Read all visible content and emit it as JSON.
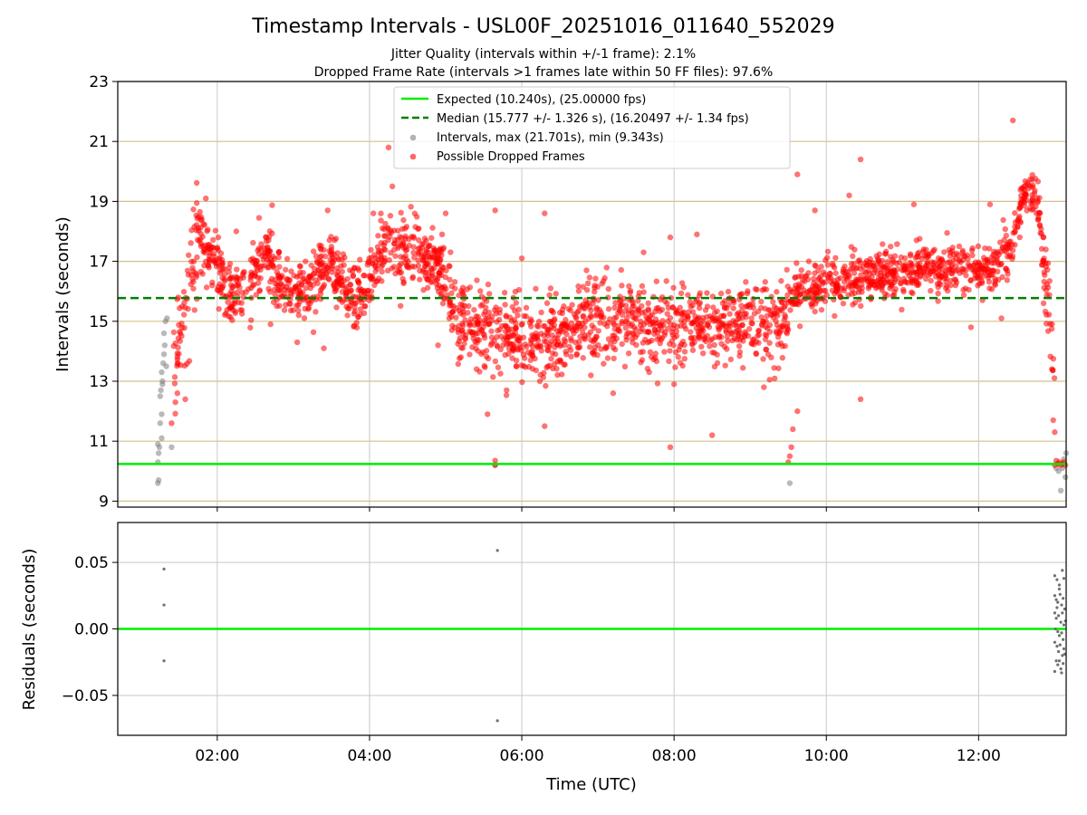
{
  "figure": {
    "title": "Timestamp Intervals - USL00F_20251016_011640_552029",
    "subtitle_jitter": "Jitter Quality (intervals within +/-1 frame): 2.1%",
    "subtitle_dropped": "Dropped Frame Rate (intervals >1 frames late within 50 FF files): 97.6%"
  },
  "colors": {
    "expected": "#00ee00",
    "median": "#008000",
    "dropped": "#ff0000",
    "intervals": "#808080",
    "grid_top": "#d4c08a",
    "grid_bottom": "#c8c8c8"
  },
  "chart_data": [
    {
      "type": "scatter",
      "panel": "intervals",
      "ylabel": "Intervals (seconds)",
      "xlabel": "",
      "x_unit": "hours UTC",
      "xlim": [
        0.693,
        13.15
      ],
      "ylim": [
        8.8,
        23.0
      ],
      "yticks": [
        9,
        11,
        13,
        15,
        17,
        19,
        21,
        23
      ],
      "ytick_labels": [
        "9",
        "11",
        "13",
        "15",
        "17",
        "19",
        "21",
        "23"
      ],
      "grid": "horizontal",
      "legend_position": "top-center",
      "legend": {
        "expected": "Expected (10.240s), (25.00000 fps)",
        "median": "Median (15.777 +/- 1.326 s), (16.20497 +/- 1.34 fps)",
        "intervals": "Intervals, max (21.701s), min (9.343s)",
        "dropped": "Possible Dropped Frames"
      },
      "reference_lines": {
        "expected": 10.24,
        "median": 15.777
      },
      "trend": [
        [
          1.28,
          12.2
        ],
        [
          1.5,
          14.4
        ],
        [
          1.75,
          17.8
        ],
        [
          1.95,
          17.2
        ],
        [
          2.2,
          15.8
        ],
        [
          2.45,
          16.4
        ],
        [
          2.65,
          17.3
        ],
        [
          2.85,
          16.2
        ],
        [
          3.2,
          15.9
        ],
        [
          3.5,
          17.1
        ],
        [
          3.75,
          15.8
        ],
        [
          3.95,
          15.9
        ],
        [
          4.2,
          17.6
        ],
        [
          4.6,
          17.3
        ],
        [
          4.95,
          16.8
        ],
        [
          5.1,
          15.2
        ],
        [
          5.5,
          14.7
        ],
        [
          5.9,
          14.5
        ],
        [
          6.3,
          14.4
        ],
        [
          6.8,
          14.9
        ],
        [
          7.4,
          15.0
        ],
        [
          7.9,
          14.9
        ],
        [
          8.4,
          14.8
        ],
        [
          8.9,
          14.9
        ],
        [
          9.45,
          14.9
        ],
        [
          9.55,
          16.0
        ],
        [
          9.85,
          16.2
        ],
        [
          10.3,
          16.4
        ],
        [
          10.8,
          16.6
        ],
        [
          11.4,
          16.8
        ],
        [
          11.9,
          16.8
        ],
        [
          12.2,
          16.9
        ],
        [
          12.45,
          17.6
        ],
        [
          12.6,
          19.2
        ],
        [
          12.75,
          19.4
        ],
        [
          12.85,
          17.0
        ],
        [
          12.95,
          14.8
        ],
        [
          13.05,
          10.3
        ]
      ],
      "outliers": [
        [
          4.25,
          20.8
        ],
        [
          3.45,
          18.7
        ],
        [
          3.4,
          14.1
        ],
        [
          5.65,
          18.7
        ],
        [
          5.2,
          13.8
        ],
        [
          5.55,
          11.9
        ],
        [
          6.3,
          18.6
        ],
        [
          6.3,
          11.5
        ],
        [
          7.6,
          17.3
        ],
        [
          7.95,
          17.8
        ],
        [
          8.3,
          17.9
        ],
        [
          8.5,
          11.2
        ],
        [
          7.95,
          10.8
        ],
        [
          9.18,
          12.8
        ],
        [
          9.62,
          19.9
        ],
        [
          9.62,
          12.0
        ],
        [
          9.85,
          18.7
        ],
        [
          10.3,
          19.2
        ],
        [
          10.45,
          20.4
        ],
        [
          10.45,
          12.4
        ],
        [
          11.15,
          18.9
        ],
        [
          12.45,
          21.7
        ],
        [
          12.15,
          18.9
        ],
        [
          12.3,
          15.1
        ],
        [
          4.05,
          18.6
        ],
        [
          4.3,
          19.5
        ],
        [
          3.05,
          14.3
        ],
        [
          2.7,
          14.9
        ],
        [
          5.0,
          18.6
        ],
        [
          6.0,
          17.1
        ],
        [
          6.85,
          16.7
        ],
        [
          8.0,
          12.9
        ],
        [
          4.9,
          14.2
        ],
        [
          5.8,
          12.7
        ],
        [
          7.2,
          12.6
        ],
        [
          12.8,
          18.6
        ],
        [
          12.85,
          17.8
        ],
        [
          2.25,
          18.0
        ],
        [
          1.85,
          19.1
        ],
        [
          11.9,
          14.8
        ]
      ],
      "low_cluster": [
        [
          9.5,
          10.3
        ],
        [
          9.52,
          10.5
        ],
        [
          9.54,
          10.8
        ],
        [
          9.56,
          11.4
        ],
        [
          13.0,
          10.2
        ],
        [
          13.02,
          10.35
        ],
        [
          13.04,
          10.25
        ],
        [
          13.06,
          10.3
        ],
        [
          13.08,
          10.2
        ],
        [
          13.1,
          10.25
        ],
        [
          13.12,
          10.3
        ],
        [
          13.14,
          10.2
        ],
        [
          13.0,
          11.3
        ],
        [
          12.98,
          11.7
        ],
        [
          5.65,
          10.2
        ],
        [
          5.65,
          10.35
        ],
        [
          1.45,
          12.3
        ],
        [
          1.4,
          11.6
        ],
        [
          1.58,
          12.4
        ]
      ],
      "gray_points": [
        [
          1.22,
          9.6
        ],
        [
          1.23,
          9.7
        ],
        [
          1.22,
          10.3
        ],
        [
          1.23,
          10.6
        ],
        [
          1.24,
          10.8
        ],
        [
          1.22,
          10.9
        ],
        [
          1.25,
          11.6
        ],
        [
          1.27,
          11.9
        ],
        [
          1.25,
          12.5
        ],
        [
          1.26,
          12.7
        ],
        [
          1.28,
          13.0
        ],
        [
          1.27,
          13.3
        ],
        [
          1.29,
          13.6
        ],
        [
          1.3,
          13.9
        ],
        [
          1.31,
          14.2
        ],
        [
          1.3,
          14.6
        ],
        [
          1.32,
          15.0
        ],
        [
          1.34,
          15.1
        ],
        [
          1.28,
          12.9
        ],
        [
          1.33,
          13.5
        ],
        [
          1.4,
          10.8
        ],
        [
          1.27,
          11.1
        ],
        [
          5.65,
          10.2
        ],
        [
          9.52,
          9.6
        ],
        [
          13.02,
          10.1
        ],
        [
          13.05,
          10.0
        ],
        [
          13.08,
          9.35
        ],
        [
          13.12,
          10.4
        ],
        [
          13.15,
          10.6
        ],
        [
          13.14,
          9.8
        ],
        [
          13.1,
          10.1
        ]
      ]
    },
    {
      "type": "scatter",
      "panel": "residuals",
      "ylabel": "Residuals (seconds)",
      "xlabel": "Time (UTC)",
      "xlim": [
        0.693,
        13.15
      ],
      "ylim": [
        -0.08,
        0.08
      ],
      "yticks": [
        -0.05,
        0.0,
        0.05
      ],
      "ytick_labels": [
        "−0.05",
        "0.00",
        "0.05"
      ],
      "xticks": [
        2,
        4,
        6,
        8,
        10,
        12
      ],
      "xtick_labels": [
        "02:00",
        "04:00",
        "06:00",
        "08:00",
        "10:00",
        "12:00"
      ],
      "grid": "both",
      "zero_line": 0.0,
      "points": [
        [
          1.3,
          0.045
        ],
        [
          1.3,
          0.018
        ],
        [
          1.3,
          -0.024
        ],
        [
          5.68,
          0.059
        ],
        [
          5.68,
          -0.069
        ],
        [
          13.0,
          0.04
        ],
        [
          13.03,
          0.037
        ],
        [
          13.06,
          0.033
        ],
        [
          13.1,
          0.044
        ],
        [
          13.12,
          0.038
        ],
        [
          13.0,
          0.025
        ],
        [
          13.02,
          0.022
        ],
        [
          13.04,
          0.02
        ],
        [
          13.07,
          0.026
        ],
        [
          13.09,
          0.018
        ],
        [
          13.11,
          0.023
        ],
        [
          13.13,
          0.015
        ],
        [
          13.0,
          0.012
        ],
        [
          13.02,
          0.008
        ],
        [
          13.05,
          0.01
        ],
        [
          13.08,
          0.005
        ],
        [
          13.1,
          0.012
        ],
        [
          13.12,
          0.003
        ],
        [
          13.01,
          0.0
        ],
        [
          13.04,
          -0.002
        ],
        [
          13.06,
          -0.005
        ],
        [
          13.09,
          -0.003
        ],
        [
          13.11,
          -0.008
        ],
        [
          13.0,
          -0.01
        ],
        [
          13.03,
          -0.013
        ],
        [
          13.05,
          -0.017
        ],
        [
          13.07,
          -0.012
        ],
        [
          13.1,
          -0.02
        ],
        [
          13.12,
          -0.015
        ],
        [
          13.02,
          -0.024
        ],
        [
          13.04,
          -0.027
        ],
        [
          13.08,
          -0.03
        ],
        [
          13.11,
          -0.026
        ],
        [
          13.0,
          -0.032
        ],
        [
          13.06,
          -0.024
        ],
        [
          13.13,
          -0.019
        ],
        [
          13.03,
          0.016
        ],
        [
          13.06,
          0.03
        ],
        [
          13.09,
          -0.033
        ],
        [
          13.14,
          0.006
        ]
      ]
    }
  ]
}
